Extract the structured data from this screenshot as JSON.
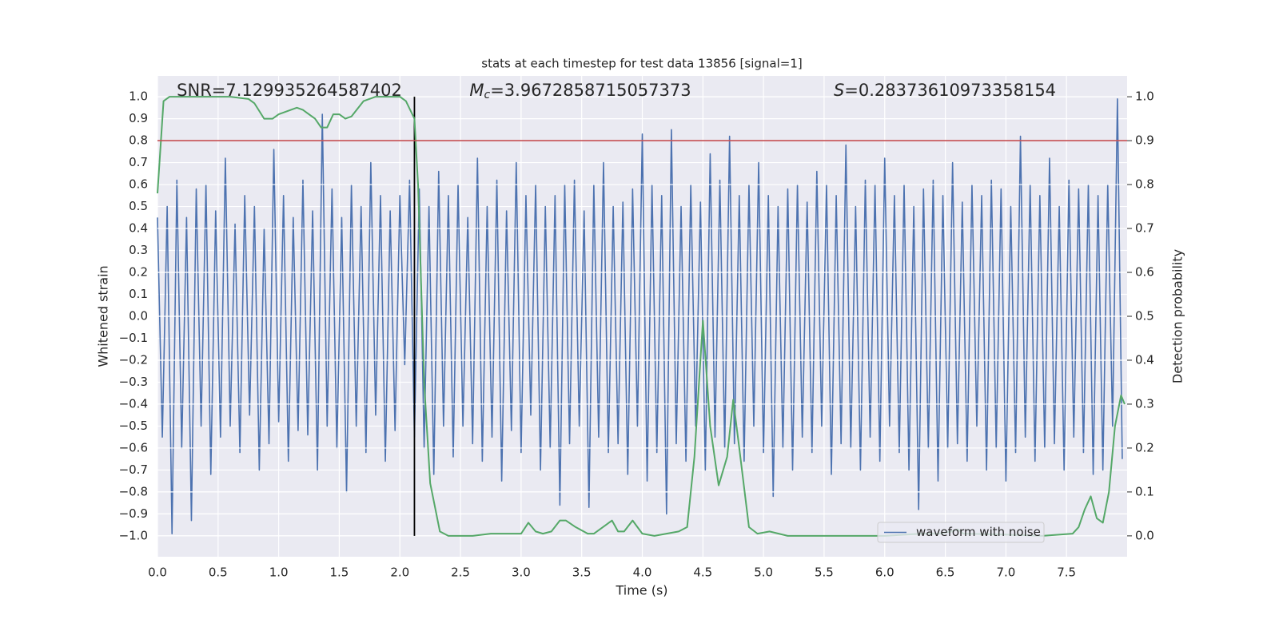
{
  "chart_data": {
    "type": "line",
    "title": "stats at each timestep for test data 13856 [signal=1]",
    "xlabel": "Time (s)",
    "ylabel": "Whitened strain",
    "y2label": "Detection probability",
    "annotations": [
      {
        "text": "SNR=7.129935264587402"
      },
      {
        "symbol": "M",
        "subscript": "c",
        "text": "=3.9672858715057373"
      },
      {
        "symbol": "S",
        "text": "=0.28373610973358154"
      }
    ],
    "xlim": [
      0,
      8
    ],
    "ylim": [
      -1.095,
      1.095
    ],
    "y2lim": [
      -0.0475,
      1.0475
    ],
    "xticks": [
      {
        "value": 0,
        "label": "0.0"
      },
      0.5,
      {
        "value": 1,
        "label": "1.0"
      },
      1.5,
      {
        "value": 2,
        "label": "2.0"
      },
      2.5,
      {
        "value": 3,
        "label": "3.0"
      },
      3.5,
      {
        "value": 4,
        "label": "4.0"
      },
      4.5,
      {
        "value": 5,
        "label": "5.0"
      },
      5.5,
      {
        "value": 6,
        "label": "6.0"
      },
      6.5,
      {
        "value": 7,
        "label": "7.0"
      },
      7.5
    ],
    "yticks": [
      {
        "value": -1,
        "label": "−1.0"
      },
      {
        "value": -0.9,
        "label": "−0.9"
      },
      {
        "value": -0.8,
        "label": "−0.8"
      },
      {
        "value": -0.7,
        "label": "−0.7"
      },
      {
        "value": -0.6,
        "label": "−0.6"
      },
      {
        "value": -0.5,
        "label": "−0.5"
      },
      {
        "value": -0.4,
        "label": "−0.4"
      },
      {
        "value": -0.3,
        "label": "−0.3"
      },
      {
        "value": -0.2,
        "label": "−0.2"
      },
      {
        "value": -0.1,
        "label": "−0.1"
      },
      {
        "value": 0,
        "label": "0.0"
      },
      0.1,
      0.2,
      0.3,
      0.4,
      0.5,
      0.6,
      0.7,
      0.8,
      0.9,
      {
        "value": 1,
        "label": "1.0"
      }
    ],
    "y2ticks": [
      {
        "value": 0,
        "label": "0.0"
      },
      0.1,
      0.2,
      0.3,
      0.4,
      0.5,
      0.6,
      0.7,
      0.8,
      0.9,
      {
        "value": 1,
        "label": "1.0"
      }
    ],
    "grid": true,
    "legend": "lower right",
    "series": [
      {
        "name": "waveform with noise",
        "color": "#4c72b0",
        "x": [
          0,
          0.04,
          0.08,
          0.12,
          0.16,
          0.2,
          0.24,
          0.28,
          0.32,
          0.36,
          0.4,
          0.44,
          0.48,
          0.52,
          0.56,
          0.6,
          0.64,
          0.68,
          0.72,
          0.76,
          0.8,
          0.84,
          0.88,
          0.92,
          0.96,
          1.0,
          1.04,
          1.08,
          1.12,
          1.16,
          1.2,
          1.24,
          1.28,
          1.32,
          1.36,
          1.4,
          1.44,
          1.48,
          1.52,
          1.56,
          1.6,
          1.64,
          1.68,
          1.72,
          1.76,
          1.8,
          1.84,
          1.88,
          1.92,
          1.96,
          2.0,
          2.04,
          2.08,
          2.12,
          2.16,
          2.2,
          2.24,
          2.28,
          2.32,
          2.36,
          2.4,
          2.44,
          2.48,
          2.52,
          2.56,
          2.6,
          2.64,
          2.68,
          2.72,
          2.76,
          2.8,
          2.84,
          2.88,
          2.92,
          2.96,
          3.0,
          3.04,
          3.08,
          3.12,
          3.16,
          3.2,
          3.24,
          3.28,
          3.32,
          3.36,
          3.4,
          3.44,
          3.48,
          3.52,
          3.56,
          3.6,
          3.64,
          3.68,
          3.72,
          3.76,
          3.8,
          3.84,
          3.88,
          3.92,
          3.96,
          4.0,
          4.04,
          4.08,
          4.12,
          4.16,
          4.2,
          4.24,
          4.28,
          4.32,
          4.36,
          4.4,
          4.44,
          4.48,
          4.52,
          4.56,
          4.6,
          4.64,
          4.68,
          4.72,
          4.76,
          4.8,
          4.84,
          4.88,
          4.92,
          4.96,
          5.0,
          5.04,
          5.08,
          5.12,
          5.16,
          5.2,
          5.24,
          5.28,
          5.32,
          5.36,
          5.4,
          5.44,
          5.48,
          5.52,
          5.56,
          5.6,
          5.64,
          5.68,
          5.72,
          5.76,
          5.8,
          5.84,
          5.88,
          5.92,
          5.96,
          6.0,
          6.04,
          6.08,
          6.12,
          6.16,
          6.2,
          6.24,
          6.28,
          6.32,
          6.36,
          6.4,
          6.44,
          6.48,
          6.52,
          6.56,
          6.6,
          6.64,
          6.68,
          6.72,
          6.76,
          6.8,
          6.84,
          6.88,
          6.92,
          6.96,
          7.0,
          7.04,
          7.08,
          7.12,
          7.16,
          7.2,
          7.24,
          7.28,
          7.32,
          7.36,
          7.4,
          7.44,
          7.48,
          7.52,
          7.56,
          7.6,
          7.64,
          7.68,
          7.72,
          7.76,
          7.8,
          7.84,
          7.88,
          7.92,
          7.96
        ],
        "values": [
          0.45,
          -0.55,
          0.5,
          -0.99,
          0.62,
          -0.6,
          0.45,
          -0.93,
          0.58,
          -0.5,
          0.6,
          -0.72,
          0.48,
          -0.55,
          0.72,
          -0.5,
          0.42,
          -0.62,
          0.55,
          -0.45,
          0.5,
          -0.7,
          0.4,
          -0.58,
          0.76,
          -0.48,
          0.55,
          -0.66,
          0.45,
          -0.52,
          0.62,
          -0.54,
          0.48,
          -0.7,
          0.92,
          -0.5,
          0.58,
          -0.6,
          0.45,
          -0.8,
          0.6,
          -0.5,
          0.5,
          -0.62,
          0.7,
          -0.45,
          0.55,
          -0.66,
          0.48,
          -0.52,
          0.55,
          -0.22,
          0.62,
          -0.55,
          0.58,
          -0.6,
          0.5,
          -0.72,
          0.66,
          -0.5,
          0.55,
          -0.64,
          0.6,
          -0.5,
          0.45,
          -0.58,
          0.72,
          -0.66,
          0.5,
          -0.55,
          0.62,
          -0.75,
          0.48,
          -0.52,
          0.7,
          -0.62,
          0.55,
          -0.45,
          0.6,
          -0.7,
          0.5,
          -0.6,
          0.55,
          -0.86,
          0.6,
          -0.58,
          0.62,
          -0.5,
          0.48,
          -0.87,
          0.6,
          -0.55,
          0.7,
          -0.62,
          0.5,
          -0.58,
          0.52,
          -0.72,
          0.58,
          -0.5,
          0.83,
          -0.75,
          0.6,
          -0.62,
          0.55,
          -0.9,
          0.85,
          -0.58,
          0.5,
          -0.66,
          0.6,
          -0.5,
          0.52,
          -0.7,
          0.74,
          -0.55,
          0.62,
          -0.6,
          0.82,
          -0.58,
          0.55,
          -0.66,
          0.6,
          -0.5,
          0.7,
          -0.62,
          0.55,
          -0.82,
          0.5,
          -0.6,
          0.58,
          -0.7,
          0.6,
          -0.55,
          0.52,
          -0.62,
          0.66,
          -0.5,
          0.6,
          -0.72,
          0.55,
          -0.58,
          0.78,
          -0.6,
          0.5,
          -0.7,
          0.62,
          -0.55,
          0.6,
          -0.66,
          0.72,
          -0.5,
          0.55,
          -0.62,
          0.6,
          -0.7,
          0.5,
          -0.88,
          0.58,
          -0.6,
          0.62,
          -0.75,
          0.55,
          -0.6,
          0.7,
          -0.58,
          0.52,
          -0.66,
          0.6,
          -0.5,
          0.55,
          -0.7,
          0.62,
          -0.6,
          0.58,
          -0.75,
          0.5,
          -0.62,
          0.82,
          -0.55,
          0.6,
          -0.66,
          0.55,
          -0.6,
          0.72,
          -0.58,
          0.5,
          -0.7,
          0.62,
          -0.55,
          0.58,
          -0.62,
          0.6,
          -0.72,
          0.55,
          -0.7,
          0.6,
          -0.5,
          0.99,
          -0.65
        ]
      },
      {
        "color": "#55a868",
        "axis": "y2",
        "x": [
          0,
          0.05,
          0.1,
          0.2,
          0.4,
          0.6,
          0.75,
          0.8,
          0.88,
          0.95,
          1.0,
          1.1,
          1.15,
          1.2,
          1.3,
          1.35,
          1.4,
          1.45,
          1.5,
          1.55,
          1.6,
          1.7,
          1.8,
          2.0,
          2.05,
          2.12,
          2.15,
          2.2,
          2.25,
          2.33,
          2.4,
          2.6,
          2.75,
          3.0,
          3.06,
          3.12,
          3.18,
          3.25,
          3.32,
          3.37,
          3.45,
          3.55,
          3.6,
          3.7,
          3.75,
          3.8,
          3.85,
          3.92,
          4.0,
          4.1,
          4.2,
          4.3,
          4.37,
          4.43,
          4.5,
          4.56,
          4.63,
          4.7,
          4.75,
          4.8,
          4.88,
          4.95,
          5.05,
          5.2,
          5.5,
          6.0,
          6.3,
          6.45,
          6.55,
          6.6,
          6.65,
          7.0,
          7.3,
          7.55,
          7.6,
          7.65,
          7.7,
          7.75,
          7.8,
          7.85,
          7.9,
          7.95,
          7.98
        ],
        "values": [
          0.78,
          0.99,
          1.0,
          1.0,
          1.0,
          1.0,
          0.995,
          0.985,
          0.95,
          0.95,
          0.96,
          0.97,
          0.975,
          0.97,
          0.95,
          0.93,
          0.93,
          0.96,
          0.96,
          0.95,
          0.955,
          0.99,
          1.0,
          1.0,
          0.99,
          0.95,
          0.8,
          0.35,
          0.12,
          0.01,
          0.0,
          0.0,
          0.005,
          0.005,
          0.03,
          0.01,
          0.005,
          0.01,
          0.035,
          0.035,
          0.02,
          0.005,
          0.005,
          0.025,
          0.035,
          0.01,
          0.01,
          0.035,
          0.005,
          0.0,
          0.005,
          0.01,
          0.02,
          0.18,
          0.49,
          0.25,
          0.115,
          0.18,
          0.31,
          0.2,
          0.02,
          0.005,
          0.01,
          0.0,
          0.0,
          0.0,
          0.005,
          0.005,
          0.01,
          0.015,
          0.005,
          0.003,
          0.0,
          0.005,
          0.02,
          0.06,
          0.09,
          0.04,
          0.03,
          0.1,
          0.25,
          0.32,
          0.3
        ]
      }
    ],
    "hlines": [
      {
        "y": 0.9,
        "axis": "y2",
        "color": "#c44e52"
      }
    ],
    "vlines": [
      {
        "x": 2.12,
        "ymin": -1,
        "ymax": 1,
        "color": "#000000"
      }
    ]
  }
}
